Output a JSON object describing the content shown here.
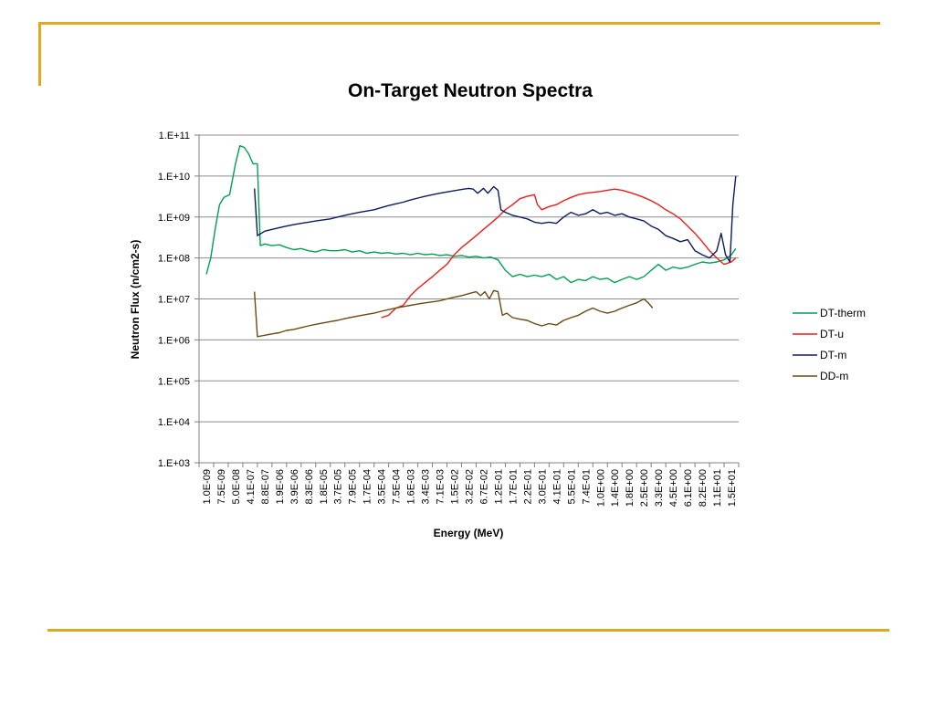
{
  "chart_data": {
    "type": "line",
    "title": "On-Target Neutron Spectra",
    "xlabel": "Energy (MeV)",
    "ylabel": "Neutron Flux (n/cm2-s)",
    "y_scale": "log",
    "ylim": [
      1000,
      100000000000
    ],
    "grid": "horizontal",
    "legend_position": "right",
    "y_ticks": [
      "1.E+03",
      "1.E+04",
      "1.E+05",
      "1.E+06",
      "1.E+07",
      "1.E+08",
      "1.E+09",
      "1.E+10",
      "1.E+11"
    ],
    "x_tick_labels": [
      "1.0E-09",
      "7.5E-09",
      "5.0E-08",
      "4.1E-07",
      "8.8E-07",
      "1.9E-06",
      "3.9E-06",
      "8.3E-06",
      "1.8E-05",
      "3.7E-05",
      "7.9E-05",
      "1.7E-04",
      "3.5E-04",
      "7.5E-04",
      "1.6E-03",
      "3.4E-03",
      "7.1E-03",
      "1.5E-02",
      "3.2E-02",
      "6.7E-02",
      "1.2E-01",
      "1.7E-01",
      "2.2E-01",
      "3.0E-01",
      "4.1E-01",
      "5.5E-01",
      "7.4E-01",
      "1.0E+00",
      "1.4E+00",
      "1.8E+00",
      "2.5E+00",
      "3.3E+00",
      "4.5E+00",
      "6.1E+00",
      "8.2E+00",
      "1.1E+01",
      "1.5E+01"
    ],
    "series": [
      {
        "name": "DT-therm",
        "color": "#00a050",
        "points": [
          [
            0,
            40000000.0
          ],
          [
            0.3,
            100000000.0
          ],
          [
            0.6,
            500000000.0
          ],
          [
            0.9,
            2000000000.0
          ],
          [
            1.2,
            3000000000.0
          ],
          [
            1.6,
            3500000000.0
          ],
          [
            2.0,
            20000000000.0
          ],
          [
            2.3,
            55000000000.0
          ],
          [
            2.6,
            50000000000.0
          ],
          [
            2.9,
            35000000000.0
          ],
          [
            3.2,
            20000000000.0
          ],
          [
            3.5,
            20000000000.0
          ],
          [
            3.7,
            200000000.0
          ],
          [
            4.0,
            220000000.0
          ],
          [
            4.5,
            200000000.0
          ],
          [
            5.0,
            210000000.0
          ],
          [
            5.5,
            180000000.0
          ],
          [
            6.0,
            160000000.0
          ],
          [
            6.5,
            170000000.0
          ],
          [
            7.0,
            150000000.0
          ],
          [
            7.5,
            140000000.0
          ],
          [
            8.0,
            160000000.0
          ],
          [
            8.5,
            150000000.0
          ],
          [
            9.0,
            150000000.0
          ],
          [
            9.5,
            160000000.0
          ],
          [
            10.0,
            140000000.0
          ],
          [
            10.5,
            150000000.0
          ],
          [
            11.0,
            130000000.0
          ],
          [
            11.5,
            140000000.0
          ],
          [
            12.0,
            130000000.0
          ],
          [
            12.5,
            135000000.0
          ],
          [
            13.0,
            125000000.0
          ],
          [
            13.5,
            130000000.0
          ],
          [
            14.0,
            120000000.0
          ],
          [
            14.5,
            130000000.0
          ],
          [
            15.0,
            120000000.0
          ],
          [
            15.5,
            125000000.0
          ],
          [
            16.0,
            115000000.0
          ],
          [
            16.5,
            120000000.0
          ],
          [
            17.0,
            110000000.0
          ],
          [
            17.5,
            115000000.0
          ],
          [
            18.0,
            105000000.0
          ],
          [
            18.5,
            110000000.0
          ],
          [
            19.0,
            100000000.0
          ],
          [
            19.5,
            105000000.0
          ],
          [
            20.0,
            90000000.0
          ],
          [
            20.5,
            50000000.0
          ],
          [
            21.0,
            35000000.0
          ],
          [
            21.5,
            40000000.0
          ],
          [
            22.0,
            35000000.0
          ],
          [
            22.5,
            38000000.0
          ],
          [
            23.0,
            35000000.0
          ],
          [
            23.5,
            40000000.0
          ],
          [
            24.0,
            30000000.0
          ],
          [
            24.5,
            35000000.0
          ],
          [
            25.0,
            25000000.0
          ],
          [
            25.5,
            30000000.0
          ],
          [
            26.0,
            28000000.0
          ],
          [
            26.5,
            35000000.0
          ],
          [
            27.0,
            30000000.0
          ],
          [
            27.5,
            32000000.0
          ],
          [
            28.0,
            25000000.0
          ],
          [
            28.5,
            30000000.0
          ],
          [
            29.0,
            35000000.0
          ],
          [
            29.5,
            30000000.0
          ],
          [
            30.0,
            35000000.0
          ],
          [
            30.5,
            50000000.0
          ],
          [
            31.0,
            70000000.0
          ],
          [
            31.5,
            50000000.0
          ],
          [
            32.0,
            60000000.0
          ],
          [
            32.5,
            55000000.0
          ],
          [
            33.0,
            60000000.0
          ],
          [
            33.5,
            70000000.0
          ],
          [
            34.0,
            80000000.0
          ],
          [
            34.5,
            75000000.0
          ],
          [
            35.0,
            80000000.0
          ],
          [
            35.5,
            90000000.0
          ],
          [
            36.0,
            120000000.0
          ],
          [
            36.3,
            170000000.0
          ]
        ]
      },
      {
        "name": "DT-u",
        "color": "#ee1c1c",
        "points": [
          [
            12,
            3500000.0
          ],
          [
            12.5,
            4000000.0
          ],
          [
            13.0,
            6000000.0
          ],
          [
            13.5,
            7000000.0
          ],
          [
            14.0,
            12000000.0
          ],
          [
            14.5,
            18000000.0
          ],
          [
            15.0,
            25000000.0
          ],
          [
            15.5,
            35000000.0
          ],
          [
            16.0,
            50000000.0
          ],
          [
            16.5,
            70000000.0
          ],
          [
            17.0,
            120000000.0
          ],
          [
            17.5,
            180000000.0
          ],
          [
            18.0,
            250000000.0
          ],
          [
            18.5,
            350000000.0
          ],
          [
            19.0,
            500000000.0
          ],
          [
            19.5,
            700000000.0
          ],
          [
            20.0,
            1000000000.0
          ],
          [
            20.5,
            1500000000.0
          ],
          [
            21.0,
            2000000000.0
          ],
          [
            21.5,
            2800000000.0
          ],
          [
            22.0,
            3200000000.0
          ],
          [
            22.5,
            3500000000.0
          ],
          [
            22.7,
            2000000000.0
          ],
          [
            23.0,
            1500000000.0
          ],
          [
            23.5,
            1800000000.0
          ],
          [
            24.0,
            2000000000.0
          ],
          [
            24.5,
            2500000000.0
          ],
          [
            25.0,
            3000000000.0
          ],
          [
            25.5,
            3500000000.0
          ],
          [
            26.0,
            3800000000.0
          ],
          [
            26.5,
            4000000000.0
          ],
          [
            27.0,
            4200000000.0
          ],
          [
            27.5,
            4500000000.0
          ],
          [
            28.0,
            4800000000.0
          ],
          [
            28.5,
            4500000000.0
          ],
          [
            29.0,
            4000000000.0
          ],
          [
            29.5,
            3500000000.0
          ],
          [
            30.0,
            3000000000.0
          ],
          [
            30.5,
            2500000000.0
          ],
          [
            31.0,
            2000000000.0
          ],
          [
            31.5,
            1500000000.0
          ],
          [
            32.0,
            1200000000.0
          ],
          [
            32.5,
            900000000.0
          ],
          [
            33.0,
            600000000.0
          ],
          [
            33.5,
            400000000.0
          ],
          [
            34.0,
            250000000.0
          ],
          [
            34.5,
            150000000.0
          ],
          [
            35.0,
            100000000.0
          ],
          [
            35.5,
            70000000.0
          ],
          [
            36.0,
            80000000.0
          ],
          [
            36.3,
            100000000.0
          ]
        ]
      },
      {
        "name": "DT-m",
        "color": "#0a1e5a",
        "points": [
          [
            3.3,
            5000000000.0
          ],
          [
            3.5,
            350000000.0
          ],
          [
            4.0,
            450000000.0
          ],
          [
            4.5,
            500000000.0
          ],
          [
            5.0,
            550000000.0
          ],
          [
            5.5,
            600000000.0
          ],
          [
            6.0,
            650000000.0
          ],
          [
            6.5,
            700000000.0
          ],
          [
            7.0,
            750000000.0
          ],
          [
            7.5,
            800000000.0
          ],
          [
            8.0,
            850000000.0
          ],
          [
            8.5,
            900000000.0
          ],
          [
            9.0,
            1000000000.0
          ],
          [
            9.5,
            1100000000.0
          ],
          [
            10.0,
            1200000000.0
          ],
          [
            10.5,
            1300000000.0
          ],
          [
            11.0,
            1400000000.0
          ],
          [
            11.5,
            1500000000.0
          ],
          [
            12.0,
            1700000000.0
          ],
          [
            12.5,
            1900000000.0
          ],
          [
            13.0,
            2100000000.0
          ],
          [
            13.5,
            2300000000.0
          ],
          [
            14.0,
            2600000000.0
          ],
          [
            14.5,
            2900000000.0
          ],
          [
            15.0,
            3200000000.0
          ],
          [
            15.5,
            3500000000.0
          ],
          [
            16.0,
            3800000000.0
          ],
          [
            16.5,
            4100000000.0
          ],
          [
            17.0,
            4400000000.0
          ],
          [
            17.5,
            4700000000.0
          ],
          [
            18.0,
            5000000000.0
          ],
          [
            18.3,
            4800000000.0
          ],
          [
            18.6,
            3800000000.0
          ],
          [
            19.0,
            5000000000.0
          ],
          [
            19.3,
            3800000000.0
          ],
          [
            19.7,
            5500000000.0
          ],
          [
            20.0,
            4500000000.0
          ],
          [
            20.2,
            1500000000.0
          ],
          [
            20.5,
            1300000000.0
          ],
          [
            21.0,
            1100000000.0
          ],
          [
            21.5,
            1000000000.0
          ],
          [
            22.0,
            900000000.0
          ],
          [
            22.5,
            750000000.0
          ],
          [
            23.0,
            700000000.0
          ],
          [
            23.5,
            750000000.0
          ],
          [
            24.0,
            700000000.0
          ],
          [
            24.5,
            1000000000.0
          ],
          [
            25.0,
            1300000000.0
          ],
          [
            25.5,
            1100000000.0
          ],
          [
            26.0,
            1200000000.0
          ],
          [
            26.5,
            1500000000.0
          ],
          [
            27.0,
            1200000000.0
          ],
          [
            27.5,
            1300000000.0
          ],
          [
            28.0,
            1100000000.0
          ],
          [
            28.5,
            1200000000.0
          ],
          [
            29.0,
            1000000000.0
          ],
          [
            29.5,
            900000000.0
          ],
          [
            30.0,
            800000000.0
          ],
          [
            30.5,
            600000000.0
          ],
          [
            31.0,
            500000000.0
          ],
          [
            31.5,
            350000000.0
          ],
          [
            32.0,
            300000000.0
          ],
          [
            32.5,
            250000000.0
          ],
          [
            33.0,
            280000000.0
          ],
          [
            33.5,
            150000000.0
          ],
          [
            34.0,
            120000000.0
          ],
          [
            34.5,
            100000000.0
          ],
          [
            35.0,
            150000000.0
          ],
          [
            35.3,
            400000000.0
          ],
          [
            35.6,
            120000000.0
          ],
          [
            35.9,
            80000000.0
          ],
          [
            36.1,
            2000000000.0
          ],
          [
            36.3,
            10000000000.0
          ]
        ]
      },
      {
        "name": "DD-m",
        "color": "#6b4a10",
        "points": [
          [
            3.3,
            15000000.0
          ],
          [
            3.5,
            1200000.0
          ],
          [
            4.0,
            1300000.0
          ],
          [
            4.5,
            1400000.0
          ],
          [
            5.0,
            1500000.0
          ],
          [
            5.5,
            1700000.0
          ],
          [
            6.0,
            1800000.0
          ],
          [
            6.5,
            2000000.0
          ],
          [
            7.0,
            2200000.0
          ],
          [
            7.5,
            2400000.0
          ],
          [
            8.0,
            2600000.0
          ],
          [
            8.5,
            2800000.0
          ],
          [
            9.0,
            3000000.0
          ],
          [
            9.5,
            3300000.0
          ],
          [
            10.0,
            3600000.0
          ],
          [
            10.5,
            3900000.0
          ],
          [
            11.0,
            4200000.0
          ],
          [
            11.5,
            4500000.0
          ],
          [
            12.0,
            5000000.0
          ],
          [
            12.5,
            5500000.0
          ],
          [
            13.0,
            6000000.0
          ],
          [
            13.5,
            6500000.0
          ],
          [
            14.0,
            7000000.0
          ],
          [
            14.5,
            7500000.0
          ],
          [
            15.0,
            8000000.0
          ],
          [
            15.5,
            8500000.0
          ],
          [
            16.0,
            9000000.0
          ],
          [
            16.5,
            10000000.0
          ],
          [
            17.0,
            11000000.0
          ],
          [
            17.5,
            12000000.0
          ],
          [
            18.0,
            13500000.0
          ],
          [
            18.5,
            15000000.0
          ],
          [
            18.8,
            12000000.0
          ],
          [
            19.1,
            15000000.0
          ],
          [
            19.4,
            10000000.0
          ],
          [
            19.7,
            16000000.0
          ],
          [
            20.0,
            15000000.0
          ],
          [
            20.3,
            4000000.0
          ],
          [
            20.6,
            4500000.0
          ],
          [
            21.0,
            3500000.0
          ],
          [
            21.5,
            3200000.0
          ],
          [
            22.0,
            3000000.0
          ],
          [
            22.5,
            2500000.0
          ],
          [
            23.0,
            2200000.0
          ],
          [
            23.5,
            2500000.0
          ],
          [
            24.0,
            2300000.0
          ],
          [
            24.5,
            3000000.0
          ],
          [
            25.0,
            3500000.0
          ],
          [
            25.5,
            4000000.0
          ],
          [
            26.0,
            5000000.0
          ],
          [
            26.5,
            6000000.0
          ],
          [
            27.0,
            5000000.0
          ],
          [
            27.5,
            4500000.0
          ],
          [
            28.0,
            5000000.0
          ],
          [
            28.5,
            6000000.0
          ],
          [
            29.0,
            7000000.0
          ],
          [
            29.5,
            8000000.0
          ],
          [
            30.0,
            10000000.0
          ],
          [
            30.3,
            8000000.0
          ],
          [
            30.6,
            6000000.0
          ]
        ]
      }
    ]
  },
  "theme": {
    "decoration_color": "#e0a81e",
    "grid_color": "#8c8c8c",
    "axis_color": "#7f7f7f"
  }
}
